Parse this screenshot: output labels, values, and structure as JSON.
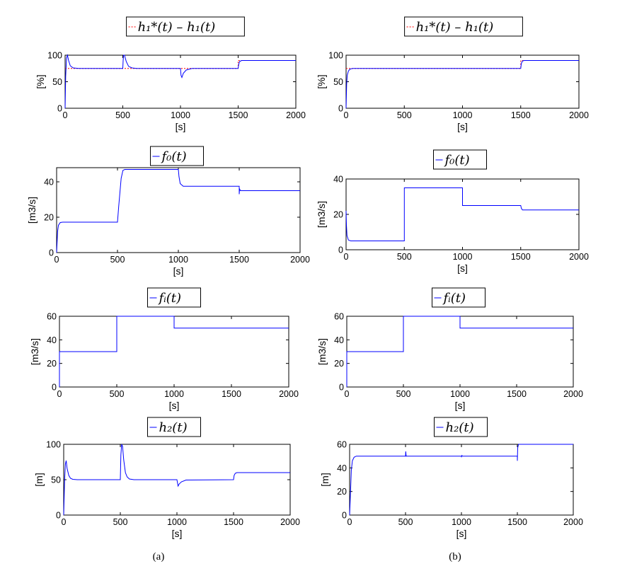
{
  "captions": [
    "(a)",
    "(b)"
  ],
  "chart_data": [
    {
      "type": "line",
      "panel": "a",
      "row": 1,
      "legend": [
        "h₁*(t)",
        "h₁(t)"
      ],
      "xlabel": "[s]",
      "ylabel": "[%]",
      "xlim": [
        0,
        2000
      ],
      "ylim": [
        0,
        100
      ],
      "xticks": [
        0,
        500,
        1000,
        1500,
        2000
      ],
      "yticks": [
        0,
        50,
        100
      ],
      "series": [
        {
          "name": "h₁*(t)",
          "color": "#ff0000",
          "dashed": true,
          "x": [
            0,
            500,
            500,
            1500,
            1500,
            2000
          ],
          "y": [
            75,
            75,
            75,
            75,
            90,
            90
          ]
        },
        {
          "name": "h₁(t)",
          "color": "#0000ff",
          "x": [
            0,
            5,
            12,
            20,
            30,
            45,
            70,
            120,
            500,
            503,
            507,
            515,
            530,
            550,
            580,
            620,
            1000,
            1005,
            1012,
            1025,
            1050,
            1100,
            1500,
            1504,
            1512,
            1530,
            1560,
            2000
          ],
          "y": [
            0,
            60,
            95,
            100,
            90,
            80,
            76,
            75,
            75,
            90,
            100,
            100,
            88,
            79,
            76,
            75,
            75,
            62,
            58,
            66,
            72,
            75,
            75,
            82,
            88,
            90,
            90,
            90
          ]
        }
      ]
    },
    {
      "type": "line",
      "panel": "b",
      "row": 1,
      "legend": [
        "h₁*(t)",
        "h₁(t)"
      ],
      "xlabel": "[s]",
      "ylabel": "[%]",
      "xlim": [
        0,
        2000
      ],
      "ylim": [
        0,
        100
      ],
      "xticks": [
        0,
        500,
        1000,
        1500,
        2000
      ],
      "yticks": [
        0,
        50,
        100
      ],
      "series": [
        {
          "name": "h₁*(t)",
          "color": "#ff0000",
          "dashed": true,
          "x": [
            0,
            1500,
            1500,
            2000
          ],
          "y": [
            75,
            75,
            90,
            90
          ]
        },
        {
          "name": "h₁(t)",
          "color": "#0000ff",
          "x": [
            0,
            5,
            10,
            20,
            30,
            45,
            60,
            1500,
            1505,
            1515,
            1530,
            2000
          ],
          "y": [
            0,
            45,
            62,
            70,
            73,
            74.5,
            75,
            75,
            84,
            89,
            90,
            90
          ]
        }
      ]
    },
    {
      "type": "line",
      "panel": "a",
      "row": 2,
      "legend": [
        "f₀(t)"
      ],
      "xlabel": "[s]",
      "ylabel": "[m3/s]",
      "xlim": [
        0,
        2000
      ],
      "ylim": [
        0,
        48
      ],
      "xticks": [
        0,
        500,
        1000,
        1500,
        2000
      ],
      "yticks": [
        0,
        20,
        40
      ],
      "series": [
        {
          "name": "f₀(t)",
          "color": "#0000ff",
          "x": [
            0,
            8,
            15,
            30,
            50,
            500,
            510,
            530,
            545,
            560,
            1000,
            1005,
            1015,
            1040,
            1500,
            1500,
            1503,
            1510,
            2000
          ],
          "y": [
            0,
            12,
            15.5,
            17,
            17.2,
            17.2,
            26,
            42,
            46.5,
            47,
            47,
            43,
            39,
            37.5,
            37.5,
            33,
            36,
            35,
            35
          ]
        }
      ]
    },
    {
      "type": "line",
      "panel": "b",
      "row": 2,
      "legend": [
        "f₀(t)"
      ],
      "xlabel": "[s]",
      "ylabel": "[m3/s]",
      "xlim": [
        0,
        2000
      ],
      "ylim": [
        0,
        40
      ],
      "xticks": [
        0,
        500,
        1000,
        1500,
        2000
      ],
      "yticks": [
        0,
        20,
        40
      ],
      "series": [
        {
          "name": "f₀(t)",
          "color": "#0000ff",
          "x": [
            0,
            3,
            8,
            20,
            40,
            500,
            500,
            1000,
            1000,
            1500,
            1505,
            1515,
            2000
          ],
          "y": [
            22,
            14,
            8,
            5.5,
            5,
            5,
            35,
            35,
            25,
            25,
            23.5,
            22.5,
            22.5
          ]
        }
      ]
    },
    {
      "type": "line",
      "panel": "a",
      "row": 3,
      "legend": [
        "fᵢ(t)"
      ],
      "xlabel": "[s]",
      "ylabel": "[m3/s]",
      "xlim": [
        0,
        2000
      ],
      "ylim": [
        0,
        60
      ],
      "xticks": [
        0,
        500,
        1000,
        1500,
        2000
      ],
      "yticks": [
        0,
        20,
        40,
        60
      ],
      "series": [
        {
          "name": "fᵢ(t)",
          "color": "#0000ff",
          "x": [
            0,
            0,
            500,
            500,
            1000,
            1000,
            2000
          ],
          "y": [
            0,
            30,
            30,
            60,
            60,
            50,
            50
          ]
        }
      ]
    },
    {
      "type": "line",
      "panel": "b",
      "row": 3,
      "legend": [
        "fᵢ(t)"
      ],
      "xlabel": "[s]",
      "ylabel": "[m3/s]",
      "xlim": [
        0,
        2000
      ],
      "ylim": [
        0,
        60
      ],
      "xticks": [
        0,
        500,
        1000,
        1500,
        2000
      ],
      "yticks": [
        0,
        20,
        40,
        60
      ],
      "series": [
        {
          "name": "fᵢ(t)",
          "color": "#0000ff",
          "x": [
            0,
            0,
            500,
            500,
            1000,
            1000,
            2000
          ],
          "y": [
            0,
            30,
            30,
            60,
            60,
            50,
            50
          ]
        }
      ]
    },
    {
      "type": "line",
      "panel": "a",
      "row": 4,
      "legend": [
        "h₂(t)"
      ],
      "xlabel": "[s]",
      "ylabel": "[m]",
      "xlim": [
        0,
        2000
      ],
      "ylim": [
        0,
        100
      ],
      "xticks": [
        0,
        500,
        1000,
        1500,
        2000
      ],
      "yticks": [
        0,
        50,
        100
      ],
      "series": [
        {
          "name": "h₂(t)",
          "color": "#0000ff",
          "x": [
            0,
            8,
            15,
            22,
            30,
            45,
            60,
            80,
            120,
            500,
            505,
            512,
            520,
            530,
            545,
            560,
            580,
            620,
            1000,
            1010,
            1020,
            1040,
            1080,
            1500,
            1505,
            1515,
            1530,
            2000
          ],
          "y": [
            0,
            50,
            72,
            77,
            66,
            56,
            52,
            50.5,
            50,
            50,
            85,
            100,
            97,
            78,
            60,
            54,
            51,
            50,
            50,
            41,
            44,
            47,
            49.5,
            50,
            56,
            59,
            60,
            60
          ]
        }
      ]
    },
    {
      "type": "line",
      "panel": "b",
      "row": 4,
      "legend": [
        "h₂(t)"
      ],
      "xlabel": "[s]",
      "ylabel": "[m]",
      "xlim": [
        0,
        2000
      ],
      "ylim": [
        0,
        60
      ],
      "xticks": [
        0,
        500,
        1000,
        1500,
        2000
      ],
      "yticks": [
        0,
        20,
        40,
        60
      ],
      "series": [
        {
          "name": "h₂(t)",
          "color": "#0000ff",
          "x": [
            0,
            8,
            15,
            25,
            40,
            60,
            500,
            502,
            506,
            1000,
            1000,
            1003,
            1010,
            1500,
            1500,
            1503,
            1510,
            1520,
            2000
          ],
          "y": [
            0,
            20,
            38,
            46,
            49,
            50,
            50,
            54,
            50,
            50,
            49,
            50.5,
            50,
            50,
            46,
            57,
            60,
            60,
            60
          ]
        }
      ]
    }
  ]
}
